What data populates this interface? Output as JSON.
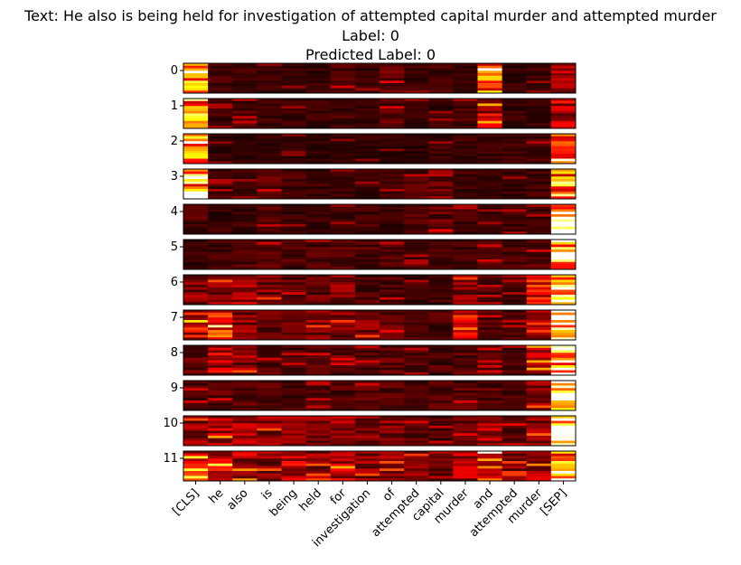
{
  "title": {
    "text": "Text: He also is being held for investigation of attempted capital murder and attempted murder",
    "label": "Label: 0",
    "predicted": "Predicted Label: 0"
  },
  "chart_data": {
    "type": "heatmap",
    "colormap": "hot",
    "title": "Text: He also is being held for investigation of attempted capital murder and attempted murder",
    "subtitle": [
      "Label: 0",
      "Predicted Label: 0"
    ],
    "rows": [
      "0",
      "1",
      "2",
      "3",
      "4",
      "5",
      "6",
      "7",
      "8",
      "9",
      "10",
      "11"
    ],
    "columns": [
      "[CLS]",
      "he",
      "also",
      "is",
      "being",
      "held",
      "for",
      "investigation",
      "of",
      "attempted",
      "capital",
      "murder",
      "and",
      "attempted",
      "murder",
      "[SEP]"
    ],
    "heads_per_layer": 12,
    "column_intensity": [
      [
        0.6,
        0.12,
        0.1,
        0.1,
        0.1,
        0.1,
        0.16,
        0.1,
        0.18,
        0.1,
        0.12,
        0.1,
        0.55,
        0.1,
        0.1,
        0.25
      ],
      [
        0.75,
        0.12,
        0.14,
        0.1,
        0.1,
        0.1,
        0.12,
        0.1,
        0.16,
        0.1,
        0.1,
        0.12,
        0.3,
        0.1,
        0.1,
        0.3
      ],
      [
        0.9,
        0.08,
        0.08,
        0.08,
        0.08,
        0.08,
        0.08,
        0.08,
        0.08,
        0.08,
        0.1,
        0.1,
        0.1,
        0.1,
        0.12,
        0.5
      ],
      [
        0.8,
        0.12,
        0.1,
        0.16,
        0.12,
        0.1,
        0.1,
        0.1,
        0.12,
        0.14,
        0.2,
        0.12,
        0.1,
        0.1,
        0.12,
        0.7
      ],
      [
        0.14,
        0.1,
        0.1,
        0.14,
        0.1,
        0.1,
        0.1,
        0.12,
        0.1,
        0.16,
        0.18,
        0.12,
        0.1,
        0.12,
        0.12,
        0.95
      ],
      [
        0.1,
        0.12,
        0.14,
        0.16,
        0.14,
        0.14,
        0.16,
        0.14,
        0.14,
        0.12,
        0.12,
        0.12,
        0.16,
        0.12,
        0.16,
        0.92
      ],
      [
        0.2,
        0.22,
        0.28,
        0.2,
        0.16,
        0.18,
        0.2,
        0.14,
        0.16,
        0.12,
        0.12,
        0.2,
        0.14,
        0.12,
        0.45,
        0.85
      ],
      [
        0.35,
        0.45,
        0.22,
        0.18,
        0.18,
        0.2,
        0.2,
        0.2,
        0.18,
        0.14,
        0.14,
        0.4,
        0.16,
        0.14,
        0.35,
        0.8
      ],
      [
        0.18,
        0.3,
        0.22,
        0.16,
        0.14,
        0.16,
        0.18,
        0.16,
        0.18,
        0.14,
        0.14,
        0.16,
        0.16,
        0.14,
        0.3,
        0.85
      ],
      [
        0.16,
        0.16,
        0.16,
        0.16,
        0.14,
        0.14,
        0.14,
        0.16,
        0.16,
        0.12,
        0.14,
        0.16,
        0.16,
        0.14,
        0.22,
        0.95
      ],
      [
        0.22,
        0.28,
        0.3,
        0.22,
        0.22,
        0.2,
        0.26,
        0.2,
        0.2,
        0.16,
        0.14,
        0.18,
        0.28,
        0.18,
        0.24,
        0.85
      ],
      [
        0.4,
        0.4,
        0.28,
        0.22,
        0.3,
        0.22,
        0.3,
        0.22,
        0.22,
        0.2,
        0.2,
        0.28,
        0.5,
        0.2,
        0.26,
        0.6
      ]
    ]
  }
}
